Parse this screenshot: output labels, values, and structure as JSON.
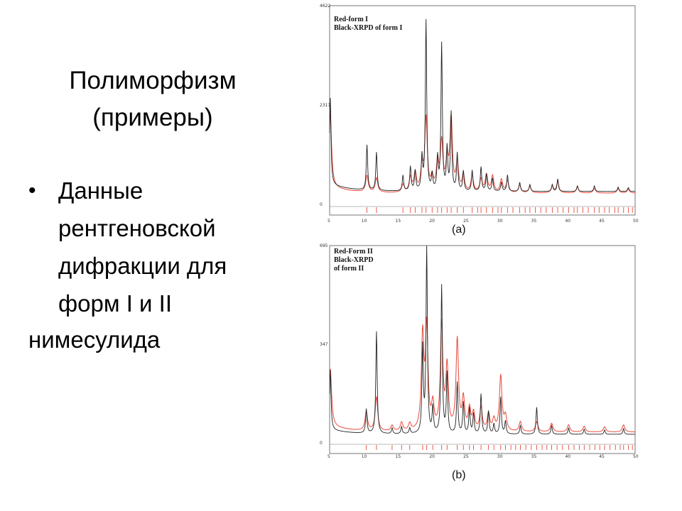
{
  "slide": {
    "title_line1": "Полиморфизм",
    "title_line2": "(примеры)",
    "bullet_symbol": "•",
    "bullet_lines": [
      "Данные",
      "рентгеновской",
      "дифракции для",
      "форм I и II"
    ],
    "tail": "нимесулида"
  },
  "chart_data": [
    {
      "type": "line",
      "caption": "(a)",
      "legend": [
        "Red-form I",
        "Black-XRPD of form I"
      ],
      "xlim": [
        5,
        50
      ],
      "ylim": [
        0,
        4622
      ],
      "y_ticks": [
        0,
        2311,
        4622
      ],
      "x_ticks": [
        5,
        10,
        15,
        20,
        25,
        30,
        35,
        40,
        45,
        50
      ],
      "colors": {
        "calc": "#e8493a",
        "exp": "#222222"
      },
      "series": [
        {
          "name": "Red-form I",
          "color": "#e8493a",
          "baseline": 260,
          "peaks": [
            [
              5.1,
              1700
            ],
            [
              10.5,
              380
            ],
            [
              11.9,
              330
            ],
            [
              15.8,
              180
            ],
            [
              16.9,
              330
            ],
            [
              17.6,
              430
            ],
            [
              18.6,
              560
            ],
            [
              19.2,
              1700
            ],
            [
              20.1,
              300
            ],
            [
              20.9,
              650
            ],
            [
              21.5,
              1120
            ],
            [
              22.3,
              700
            ],
            [
              22.9,
              1680
            ],
            [
              23.8,
              650
            ],
            [
              24.7,
              380
            ],
            [
              26.0,
              380
            ],
            [
              27.3,
              300
            ],
            [
              28.1,
              400
            ],
            [
              29.0,
              380
            ],
            [
              30.3,
              300
            ],
            [
              31.2,
              280
            ],
            [
              33.0,
              180
            ],
            [
              34.5,
              150
            ],
            [
              37.8,
              150
            ],
            [
              38.6,
              250
            ],
            [
              41.5,
              140
            ],
            [
              44.0,
              110
            ],
            [
              47.5,
              100
            ],
            [
              49.0,
              90
            ]
          ],
          "ticks": [
            10.5,
            11.9,
            15.8,
            16.9,
            17.6,
            18.6,
            19.2,
            20.1,
            20.9,
            21.5,
            22.3,
            22.9,
            23.8,
            24.7,
            26.0,
            26.8,
            27.3,
            28.1,
            29.0,
            29.8,
            30.3,
            31.2,
            32.0,
            33.0,
            33.8,
            34.5,
            35.3,
            36.1,
            36.9,
            37.8,
            38.6,
            39.4,
            40.2,
            41.0,
            41.5,
            42.3,
            43.1,
            44.0,
            44.7,
            45.5,
            46.2,
            47.0,
            47.5,
            48.3,
            49.0,
            49.6
          ]
        },
        {
          "name": "Black-XRPD of form I",
          "color": "#222222",
          "baseline": 300,
          "peaks": [
            [
              5.1,
              2000
            ],
            [
              10.5,
              1050
            ],
            [
              11.9,
              890
            ],
            [
              15.8,
              360
            ],
            [
              16.9,
              560
            ],
            [
              17.6,
              460
            ],
            [
              18.6,
              760
            ],
            [
              19.2,
              3950
            ],
            [
              20.1,
              360
            ],
            [
              20.9,
              740
            ],
            [
              21.5,
              3400
            ],
            [
              22.3,
              960
            ],
            [
              22.9,
              1800
            ],
            [
              23.8,
              860
            ],
            [
              24.7,
              460
            ],
            [
              26.0,
              480
            ],
            [
              27.3,
              560
            ],
            [
              28.1,
              400
            ],
            [
              29.0,
              300
            ],
            [
              30.3,
              210
            ],
            [
              31.2,
              380
            ],
            [
              33.0,
              210
            ],
            [
              34.5,
              160
            ],
            [
              37.8,
              160
            ],
            [
              38.6,
              290
            ],
            [
              41.5,
              130
            ],
            [
              44.0,
              130
            ],
            [
              47.5,
              100
            ],
            [
              49.0,
              90
            ]
          ]
        }
      ]
    },
    {
      "type": "line",
      "caption": "(b)",
      "legend": [
        "Red-Form II",
        "Black-XRPD",
        "of form II"
      ],
      "xlim": [
        5,
        50
      ],
      "ylim": [
        0,
        695
      ],
      "y_ticks": [
        0,
        347,
        695
      ],
      "x_ticks": [
        5,
        10,
        15,
        20,
        25,
        30,
        35,
        40,
        45,
        50
      ],
      "colors": {
        "calc": "#e8493a",
        "exp": "#222222"
      },
      "series": [
        {
          "name": "Red-Form II",
          "color": "#e8493a",
          "baseline": 38,
          "peaks": [
            [
              5.1,
              200
            ],
            [
              10.4,
              65
            ],
            [
              11.9,
              120
            ],
            [
              14.2,
              20
            ],
            [
              15.6,
              30
            ],
            [
              16.8,
              25
            ],
            [
              18.7,
              330
            ],
            [
              19.3,
              355
            ],
            [
              20.2,
              85
            ],
            [
              21.5,
              370
            ],
            [
              22.3,
              220
            ],
            [
              23.8,
              320
            ],
            [
              24.7,
              110
            ],
            [
              25.6,
              75
            ],
            [
              26.2,
              60
            ],
            [
              27.3,
              80
            ],
            [
              28.4,
              60
            ],
            [
              29.2,
              40
            ],
            [
              30.2,
              195
            ],
            [
              30.9,
              50
            ],
            [
              33.1,
              35
            ],
            [
              35.5,
              35
            ],
            [
              37.7,
              30
            ],
            [
              40.2,
              25
            ],
            [
              42.5,
              20
            ],
            [
              45.5,
              18
            ],
            [
              48.3,
              25
            ]
          ],
          "ticks": [
            10.4,
            11.9,
            14.2,
            15.6,
            16.8,
            18.7,
            19.3,
            20.2,
            21.5,
            22.3,
            23.8,
            24.7,
            25.6,
            26.2,
            27.3,
            28.4,
            29.2,
            30.2,
            30.9,
            31.7,
            32.4,
            33.1,
            33.9,
            34.7,
            35.5,
            36.3,
            37.0,
            37.7,
            38.5,
            39.3,
            40.2,
            41.0,
            41.8,
            42.5,
            43.3,
            44.1,
            44.8,
            45.5,
            46.3,
            47.1,
            47.8,
            48.3,
            49.0,
            49.6
          ]
        },
        {
          "name": "Black-XRPD of form II",
          "color": "#222222",
          "baseline": 30,
          "peaks": [
            [
              5.1,
              210
            ],
            [
              10.4,
              85
            ],
            [
              11.9,
              360
            ],
            [
              14.2,
              20
            ],
            [
              15.6,
              25
            ],
            [
              16.8,
              20
            ],
            [
              18.7,
              300
            ],
            [
              19.3,
              650
            ],
            [
              20.2,
              90
            ],
            [
              21.5,
              520
            ],
            [
              22.3,
              210
            ],
            [
              23.8,
              180
            ],
            [
              24.7,
              110
            ],
            [
              25.6,
              90
            ],
            [
              26.2,
              70
            ],
            [
              27.3,
              140
            ],
            [
              28.4,
              80
            ],
            [
              29.2,
              35
            ],
            [
              30.2,
              130
            ],
            [
              30.9,
              45
            ],
            [
              33.1,
              30
            ],
            [
              35.5,
              95
            ],
            [
              37.7,
              30
            ],
            [
              40.2,
              22
            ],
            [
              42.5,
              18
            ],
            [
              45.5,
              15
            ],
            [
              48.3,
              20
            ]
          ]
        }
      ]
    }
  ]
}
